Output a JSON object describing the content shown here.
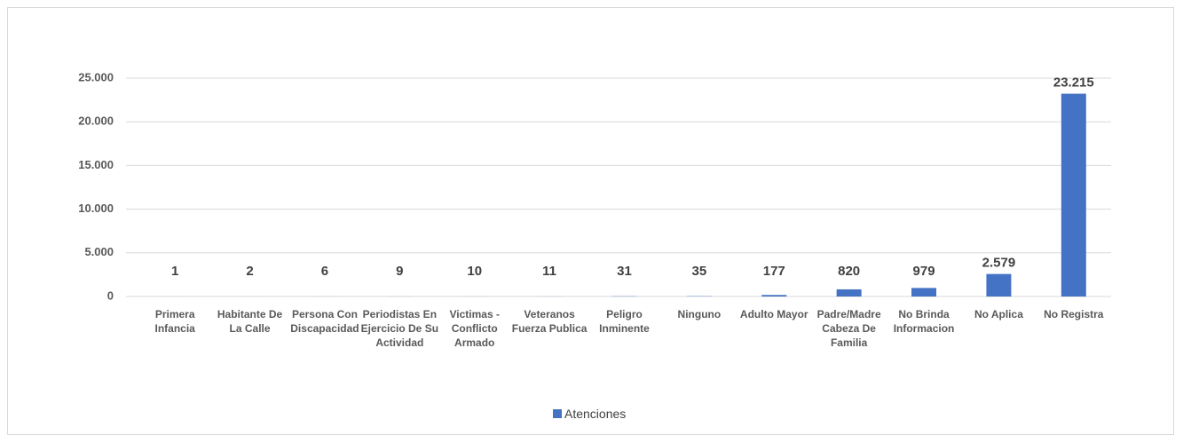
{
  "chart_data": {
    "type": "bar",
    "categories": [
      "Primera Infancia",
      "Habitante De La Calle",
      "Persona Con Discapacidad",
      "Periodistas En Ejercicio De Su Actividad",
      "Victimas - Conflicto Armado",
      "Veteranos Fuerza Publica",
      "Peligro Inminente",
      "Ninguno",
      "Adulto Mayor",
      "Padre/Madre Cabeza De Familia",
      "No Brinda Informacion",
      "No Aplica",
      "No Registra"
    ],
    "series": [
      {
        "name": "Atenciones",
        "color": "#4472c4",
        "values": [
          1,
          2,
          6,
          9,
          10,
          11,
          31,
          35,
          177,
          820,
          979,
          2579,
          23215
        ],
        "value_labels": [
          "1",
          "2",
          "6",
          "9",
          "10",
          "11",
          "31",
          "35",
          "177",
          "820",
          "979",
          "2.579",
          "23.215"
        ]
      }
    ],
    "ylim": [
      0,
      25000
    ],
    "yticks": [
      0,
      {
        "value": 5000,
        "label": "5.000"
      },
      {
        "value": 10000,
        "label": "10.000"
      },
      {
        "value": 15000,
        "label": "15.000"
      },
      {
        "value": 20000,
        "label": "20.000"
      },
      {
        "value": 25000,
        "label": "25.000"
      }
    ],
    "grid": true,
    "legend": "bottom"
  }
}
